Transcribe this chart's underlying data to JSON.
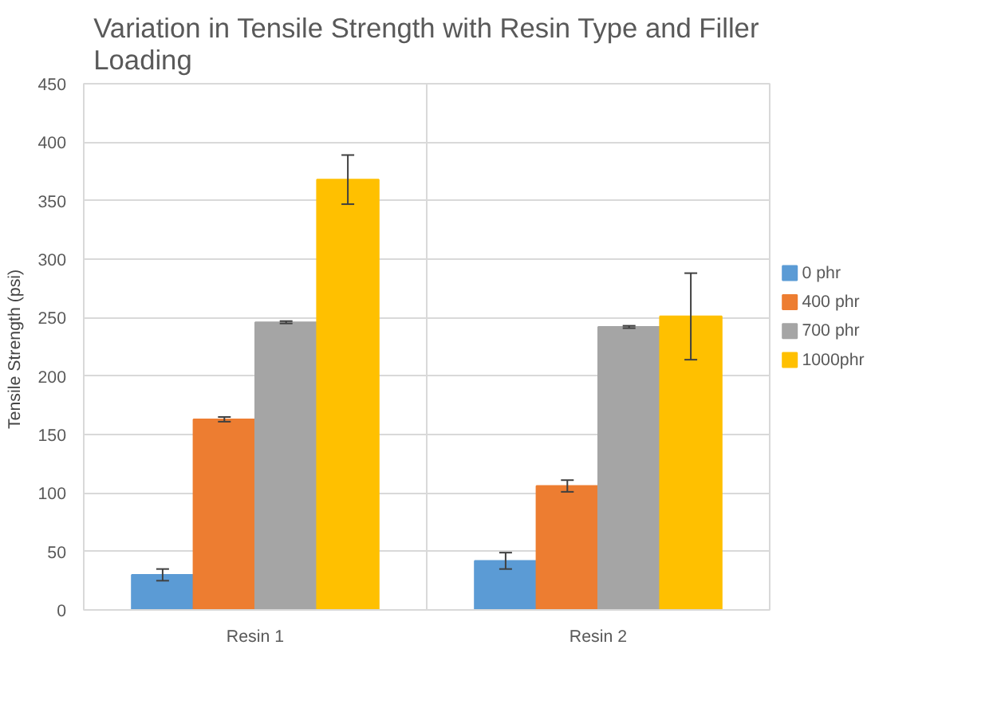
{
  "chart_data": {
    "type": "bar",
    "title": "Variation in Tensile Strength with Resin Type and Filler Loading",
    "ylabel": "Tensile Strength  (psi)",
    "categories": [
      "Resin 1",
      "Resin 2"
    ],
    "series": [
      {
        "name": "0 phr",
        "color": "#5b9bd5",
        "values": [
          30,
          42
        ],
        "errors": [
          5,
          7
        ]
      },
      {
        "name": "400 phr",
        "color": "#ed7d31",
        "values": [
          163,
          106
        ],
        "errors": [
          2,
          5
        ]
      },
      {
        "name": "700 phr",
        "color": "#a5a5a5",
        "values": [
          246,
          242
        ],
        "errors": [
          1,
          1
        ]
      },
      {
        "name": "1000phr",
        "color": "#ffc000",
        "values": [
          368,
          251
        ],
        "errors": [
          21,
          37
        ]
      }
    ],
    "ylim": [
      0,
      450
    ],
    "yticks": [
      0,
      50,
      100,
      150,
      200,
      250,
      300,
      350,
      400,
      450
    ],
    "grid": true,
    "legend": "right"
  }
}
